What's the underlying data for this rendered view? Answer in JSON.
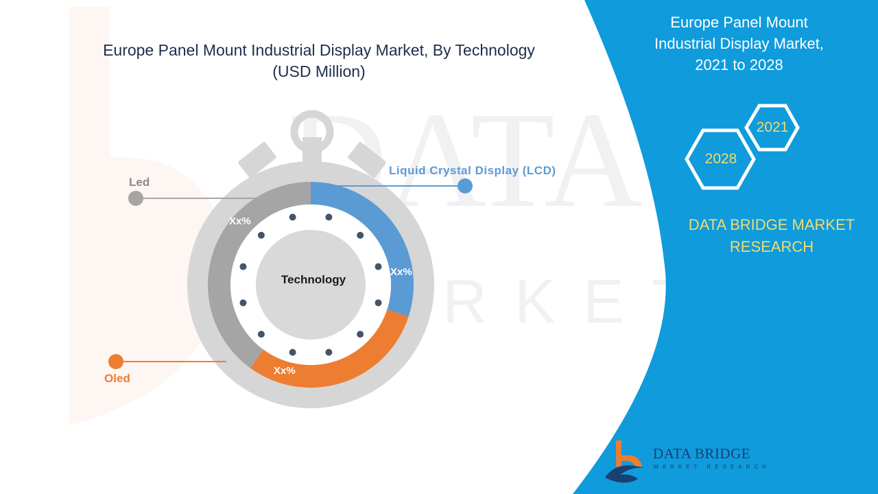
{
  "chart_data": {
    "type": "donut",
    "title": "Europe Panel Mount Industrial Display Market, By Technology",
    "subtitle": "(USD Million)",
    "center_label": "Technology",
    "categories": [
      "Liquid Crystal Display (LCD)",
      "Oled",
      "Led"
    ],
    "series": [
      {
        "label": "Liquid Crystal Display (LCD)",
        "value_label": "Xx%",
        "value": 0.3,
        "color": "#5b9bd5"
      },
      {
        "label": "Oled",
        "value_label": "Xx%",
        "value": 0.3,
        "color": "#ed7d31"
      },
      {
        "label": "Led",
        "value_label": "Xx%",
        "value": 0.4,
        "color": "#a5a5a5"
      }
    ]
  },
  "side_panel": {
    "title_line1": "Europe Panel Mount",
    "title_line2": "Industrial Display Market,",
    "title_line3": "2021 to 2028",
    "year_start": "2021",
    "year_end": "2028",
    "brand_line1": "DATA BRIDGE MARKET",
    "brand_line2": "RESEARCH",
    "color": "#0f9bdc",
    "accent": "#f2dc6e"
  },
  "footer_logo": {
    "name": "DATA BRIDGE",
    "tagline": "MARKET RESEARCH",
    "icon": "data-bridge-logo-icon"
  },
  "watermark": {
    "text": "DATA BRIDGE",
    "subtext": "MARKET RESEARCH"
  }
}
